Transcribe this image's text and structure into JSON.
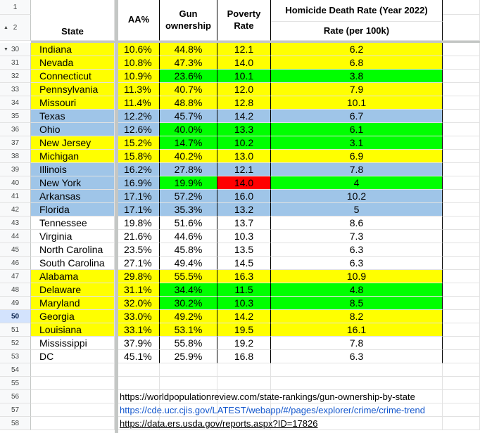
{
  "headers": {
    "state": "State",
    "aa": "AA%",
    "gun": "Gun ownership",
    "poverty": "Poverty Rate",
    "homicide_title": "Homicide Death Rate (Year 2022)",
    "homicide_sub": "Rate (per 100k)"
  },
  "colors": {
    "yellow": "#ffff00",
    "green": "#00ff00",
    "blue": "#9fc5e8",
    "red": "#ff0000",
    "white": "#ffffff"
  },
  "rows": [
    {
      "num": "30",
      "state": "Indiana",
      "aa": "10.6%",
      "gun": "44.8%",
      "poverty": "12.1",
      "homicide": "6.2",
      "sc": "yellow",
      "gc": "yellow",
      "pc": "yellow",
      "hc": "yellow"
    },
    {
      "num": "31",
      "state": "Nevada",
      "aa": "10.8%",
      "gun": "47.3%",
      "poverty": "14.0",
      "homicide": "6.8",
      "sc": "yellow",
      "gc": "yellow",
      "pc": "yellow",
      "hc": "yellow"
    },
    {
      "num": "32",
      "state": "Connecticut",
      "aa": "10.9%",
      "gun": "23.6%",
      "poverty": "10.1",
      "homicide": "3.8",
      "sc": "yellow",
      "gc": "green",
      "pc": "green",
      "hc": "green"
    },
    {
      "num": "33",
      "state": "Pennsylvania",
      "aa": "11.3%",
      "gun": "40.7%",
      "poverty": "12.0",
      "homicide": "7.9",
      "sc": "yellow",
      "gc": "yellow",
      "pc": "yellow",
      "hc": "yellow"
    },
    {
      "num": "34",
      "state": "Missouri",
      "aa": "11.4%",
      "gun": "48.8%",
      "poverty": "12.8",
      "homicide": "10.1",
      "sc": "yellow",
      "gc": "yellow",
      "pc": "yellow",
      "hc": "yellow"
    },
    {
      "num": "35",
      "state": "Texas",
      "aa": "12.2%",
      "gun": "45.7%",
      "poverty": "14.2",
      "homicide": "6.7",
      "sc": "blue",
      "gc": "blue",
      "pc": "blue",
      "hc": "blue"
    },
    {
      "num": "36",
      "state": "Ohio",
      "aa": "12.6%",
      "gun": "40.0%",
      "poverty": "13.3",
      "homicide": "6.1",
      "sc": "blue",
      "gc": "green",
      "pc": "green",
      "hc": "green"
    },
    {
      "num": "37",
      "state": "New Jersey",
      "aa": "15.2%",
      "gun": "14.7%",
      "poverty": "10.2",
      "homicide": "3.1",
      "sc": "yellow",
      "gc": "green",
      "pc": "green",
      "hc": "green"
    },
    {
      "num": "38",
      "state": "Michigan",
      "aa": "15.8%",
      "gun": "40.2%",
      "poverty": "13.0",
      "homicide": "6.9",
      "sc": "yellow",
      "gc": "yellow",
      "pc": "yellow",
      "hc": "yellow"
    },
    {
      "num": "39",
      "state": "Illinois",
      "aa": "16.2%",
      "gun": "27.8%",
      "poverty": "12.1",
      "homicide": "7.8",
      "sc": "blue",
      "gc": "blue",
      "pc": "blue",
      "hc": "blue"
    },
    {
      "num": "40",
      "state": "New York",
      "aa": "16.9%",
      "gun": "19.9%",
      "poverty": "14.0",
      "homicide": "4",
      "sc": "blue",
      "gc": "green",
      "pc": "red",
      "hc": "green"
    },
    {
      "num": "41",
      "state": "Arkansas",
      "aa": "17.1%",
      "gun": "57.2%",
      "poverty": "16.0",
      "homicide": "10.2",
      "sc": "blue",
      "gc": "blue",
      "pc": "blue",
      "hc": "blue"
    },
    {
      "num": "42",
      "state": "Florida",
      "aa": "17.1%",
      "gun": "35.3%",
      "poverty": "13.2",
      "homicide": "5",
      "sc": "blue",
      "gc": "blue",
      "pc": "blue",
      "hc": "blue"
    },
    {
      "num": "43",
      "state": "Tennessee",
      "aa": "19.8%",
      "gun": "51.6%",
      "poverty": "13.7",
      "homicide": "8.6",
      "sc": "white",
      "gc": "white",
      "pc": "white",
      "hc": "white"
    },
    {
      "num": "44",
      "state": "Virginia",
      "aa": "21.6%",
      "gun": "44.6%",
      "poverty": "10.3",
      "homicide": "7.3",
      "sc": "white",
      "gc": "white",
      "pc": "white",
      "hc": "white"
    },
    {
      "num": "45",
      "state": "North Carolina",
      "aa": "23.5%",
      "gun": "45.8%",
      "poverty": "13.5",
      "homicide": "6.3",
      "sc": "white",
      "gc": "white",
      "pc": "white",
      "hc": "white"
    },
    {
      "num": "46",
      "state": "South Carolina",
      "aa": "27.1%",
      "gun": "49.4%",
      "poverty": "14.5",
      "homicide": "6.3",
      "sc": "white",
      "gc": "white",
      "pc": "white",
      "hc": "white"
    },
    {
      "num": "47",
      "state": "Alabama",
      "aa": "29.8%",
      "gun": "55.5%",
      "poverty": "16.3",
      "homicide": "10.9",
      "sc": "yellow",
      "gc": "yellow",
      "pc": "yellow",
      "hc": "yellow"
    },
    {
      "num": "48",
      "state": "Delaware",
      "aa": "31.1%",
      "gun": "34.4%",
      "poverty": "11.5",
      "homicide": "4.8",
      "sc": "yellow",
      "gc": "green",
      "pc": "green",
      "hc": "green"
    },
    {
      "num": "49",
      "state": "Maryland",
      "aa": "32.0%",
      "gun": "30.2%",
      "poverty": "10.3",
      "homicide": "8.5",
      "sc": "yellow",
      "gc": "green",
      "pc": "green",
      "hc": "green"
    },
    {
      "num": "50",
      "state": "Georgia",
      "aa": "33.0%",
      "gun": "49.2%",
      "poverty": "14.2",
      "homicide": "8.2",
      "sc": "yellow",
      "gc": "yellow",
      "pc": "yellow",
      "hc": "yellow"
    },
    {
      "num": "51",
      "state": "Louisiana",
      "aa": "33.1%",
      "gun": "53.1%",
      "poverty": "19.5",
      "homicide": "16.1",
      "sc": "yellow",
      "gc": "yellow",
      "pc": "yellow",
      "hc": "yellow"
    },
    {
      "num": "52",
      "state": "Mississippi",
      "aa": "37.9%",
      "gun": "55.8%",
      "poverty": "19.2",
      "homicide": "7.8",
      "sc": "white",
      "gc": "white",
      "pc": "white",
      "hc": "white"
    },
    {
      "num": "53",
      "state": "DC",
      "aa": "45.1%",
      "gun": "25.9%",
      "poverty": "16.8",
      "homicide": "6.3",
      "sc": "white",
      "gc": "white",
      "pc": "white",
      "hc": "white"
    }
  ],
  "empty_rows": [
    "54",
    "55",
    "56",
    "57",
    "58"
  ],
  "top_rows": [
    "1",
    "2"
  ],
  "selected_row": "50",
  "links": [
    "https://worldpopulationreview.com/state-rankings/gun-ownership-by-state",
    "https://cde.ucr.cjis.gov/LATEST/webapp/#/pages/explorer/crime/crime-trend",
    "https://data.ers.usda.gov/reports.aspx?ID=17826"
  ]
}
